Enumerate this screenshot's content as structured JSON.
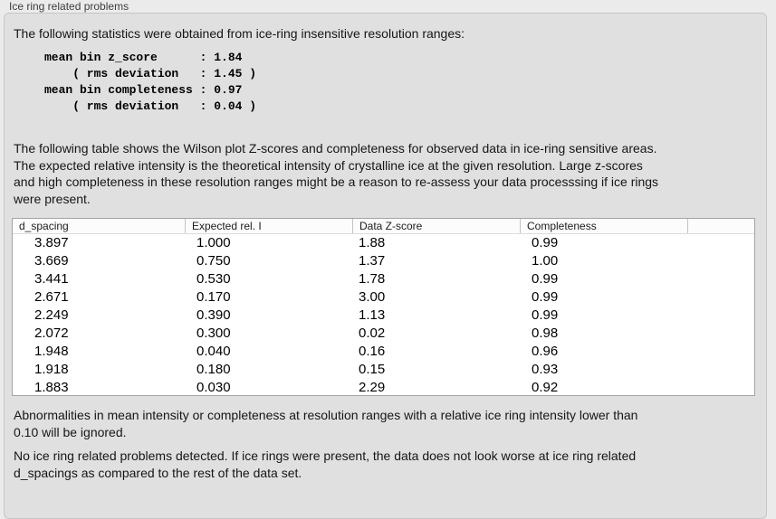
{
  "group": {
    "label": "Ice ring related problems",
    "intro": "The following statistics were obtained from ice-ring insensitive resolution ranges:",
    "stats_block": "mean bin z_score      : 1.84\n    ( rms deviation   : 1.45 )\nmean bin completeness : 0.97\n    ( rms deviation   : 0.04 )",
    "table_description": "The following table shows the Wilson plot Z-scores and completeness for observed data in ice-ring sensitive areas.\nThe expected relative intensity is the theoretical intensity of crystalline ice at the given resolution. Large z-scores\nand high completeness in these resolution ranges might be a reason to re-assess your data processsing if ice rings\nwere present.",
    "ignore_note": "Abnormalities in mean intensity or completeness at resolution ranges with a relative ice ring intensity lower than\n0.10 will be ignored.",
    "conclusion": "No ice ring related problems detected. If ice rings were present, the data does not look worse at ice ring related\nd_spacings as compared to the rest of the data set."
  },
  "table": {
    "columns": [
      "d_spacing",
      "Expected rel. I",
      "Data Z-score",
      "Completeness",
      ""
    ],
    "rows": [
      [
        "3.897",
        "1.000",
        "1.88",
        "0.99"
      ],
      [
        "3.669",
        "0.750",
        "1.37",
        "1.00"
      ],
      [
        "3.441",
        "0.530",
        "1.78",
        "0.99"
      ],
      [
        "2.671",
        "0.170",
        "3.00",
        "0.99"
      ],
      [
        "2.249",
        "0.390",
        "1.13",
        "0.99"
      ],
      [
        "2.072",
        "0.300",
        "0.02",
        "0.98"
      ],
      [
        "1.948",
        "0.040",
        "0.16",
        "0.96"
      ],
      [
        "1.918",
        "0.180",
        "0.15",
        "0.93"
      ],
      [
        "1.883",
        "0.030",
        "2.29",
        "0.92"
      ]
    ]
  }
}
